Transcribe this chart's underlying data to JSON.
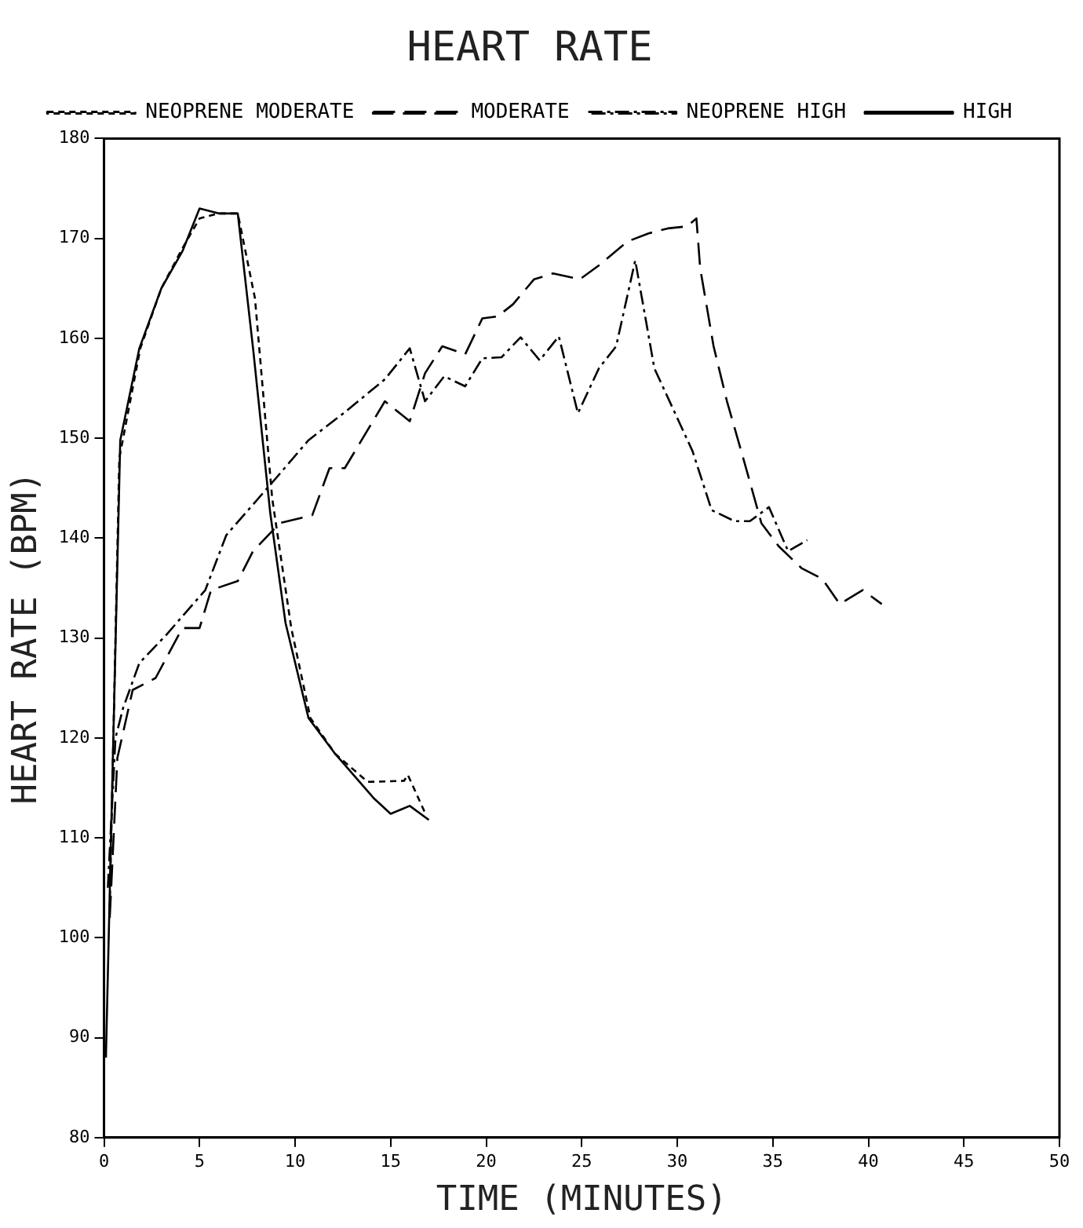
{
  "chart_data": {
    "type": "line",
    "title": "HEART RATE",
    "xlabel": "TIME (MINUTES)",
    "ylabel": "HEART RATE (BPM)",
    "legend": "top",
    "grid": false,
    "marker": "none",
    "xlim": [
      0,
      50
    ],
    "xticks": [
      0,
      5,
      10,
      15,
      20,
      25,
      30,
      35,
      40,
      45,
      50
    ],
    "ylim": [
      80,
      180
    ],
    "yticks": [
      80,
      90,
      100,
      110,
      120,
      130,
      140,
      150,
      160,
      170,
      180
    ],
    "series": [
      {
        "name": "NEOPRENE MODERATE",
        "color": "#000000",
        "line_style": "dotted",
        "x": [
          0.3,
          0.8,
          1.9,
          3,
          4.1,
          5,
          6,
          7,
          7.9,
          8.8,
          9.8,
          10.8,
          12.1,
          13.8,
          15.7,
          15.9,
          16.8
        ],
        "values": [
          103,
          148,
          159,
          165,
          169,
          172,
          172.5,
          172.5,
          164,
          144,
          131,
          122,
          118.4,
          115.6,
          115.7,
          116.3,
          112.5
        ]
      },
      {
        "name": "MODERATE",
        "color": "#000000",
        "line_style": "dashed",
        "x": [
          0.3,
          0.7,
          1.5,
          2.7,
          4.1,
          5,
          5.6,
          7,
          7.8,
          9.2,
          10.9,
          11.8,
          12.6,
          14.7,
          16,
          16.8,
          17.7,
          18.9,
          19.8,
          20.6,
          21.4,
          22.5,
          23.5,
          24.9,
          25.9,
          27.4,
          28.5,
          29.5,
          30.5,
          31,
          31.2,
          31.9,
          32.6,
          33.6,
          34.4,
          35.3,
          36.5,
          37.6,
          38.5,
          39.7,
          40.7
        ],
        "values": [
          102,
          118,
          124.8,
          126,
          131,
          131,
          134.8,
          135.7,
          138.7,
          141.5,
          142.3,
          147,
          147,
          153.7,
          151.7,
          156.5,
          159.2,
          158.4,
          162,
          162.2,
          163.4,
          165.9,
          166.5,
          165.9,
          167.3,
          169.7,
          170.5,
          171,
          171.2,
          172,
          167,
          159.2,
          153.7,
          147,
          141.5,
          139.2,
          137,
          135.9,
          133.4,
          134.8,
          133.4
        ]
      },
      {
        "name": "NEOPRENE HIGH",
        "color": "#000000",
        "line_style": "dashdot",
        "x": [
          0.2,
          0.6,
          1,
          1.85,
          3.25,
          5.3,
          6.4,
          9,
          10.7,
          12.6,
          14.7,
          16,
          16.8,
          17.8,
          18.9,
          19.8,
          20.8,
          21.8,
          22.8,
          23.8,
          24.8,
          25.9,
          26.8,
          27.8,
          28.8,
          30.8,
          31.8,
          33,
          33.8,
          34.8,
          35.8,
          36.8
        ],
        "values": [
          105,
          120,
          123,
          127.5,
          130.3,
          134.8,
          140.3,
          146,
          149.8,
          152.6,
          155.9,
          159,
          153.7,
          156.2,
          155.2,
          158,
          158.1,
          160.1,
          157.8,
          160.2,
          152.5,
          157,
          159.2,
          167.8,
          157,
          148.7,
          142.8,
          141.7,
          141.7,
          143.1,
          138.7,
          139.8
        ]
      },
      {
        "name": "HIGH",
        "color": "#000000",
        "line_style": "solid",
        "x": [
          0.1,
          0.85,
          1.85,
          3,
          4.1,
          5,
          6,
          7,
          7.8,
          8.7,
          9.5,
          10.7,
          12.1,
          14.1,
          15,
          16,
          17
        ],
        "values": [
          88,
          149.8,
          159,
          165,
          168.7,
          173,
          172.5,
          172.5,
          159,
          142.5,
          131.5,
          122,
          118.4,
          114,
          112.4,
          113.2,
          111.8
        ]
      }
    ]
  }
}
